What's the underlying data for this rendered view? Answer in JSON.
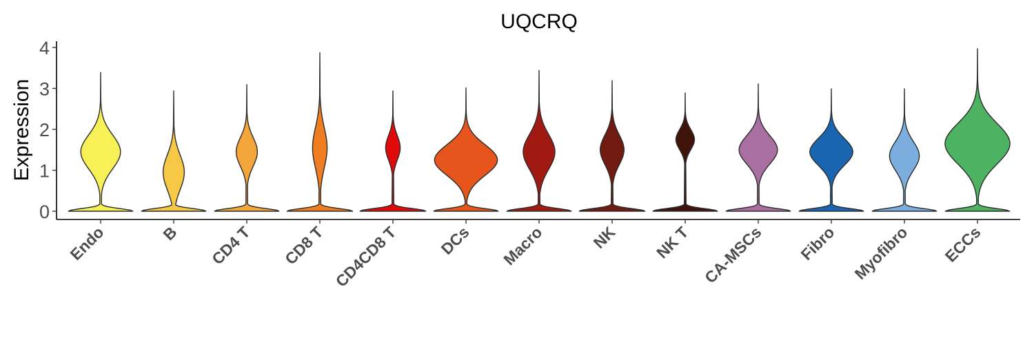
{
  "chart_data": {
    "type": "violin",
    "title": "UQCRQ",
    "xlabel": "",
    "ylabel": "Expression",
    "ylim": [
      0,
      4
    ],
    "yticks": [
      0,
      1,
      2,
      3,
      4
    ],
    "grid": false,
    "categories": [
      "Endo",
      "B",
      "CD4 T",
      "CD8 T",
      "CD4CD8 T",
      "DCs",
      "Macro",
      "NK",
      "NK T",
      "CA-MSCs",
      "Fibro",
      "Myofibro",
      "ECCs"
    ],
    "colors": [
      "#F7F056",
      "#F7C746",
      "#F5A63A",
      "#EF7D22",
      "#E00A0A",
      "#E6561C",
      "#A11A12",
      "#711A10",
      "#3F150B",
      "#A96FA0",
      "#1A65AF",
      "#7BAEDE",
      "#4DB261"
    ],
    "violins": [
      {
        "max": 3.4,
        "peak": 1.45,
        "peak_width": 0.6,
        "base_width": 0.98
      },
      {
        "max": 2.95,
        "peak": 0.95,
        "peak_width": 0.32,
        "base_width": 0.98
      },
      {
        "max": 3.1,
        "peak": 1.45,
        "peak_width": 0.32,
        "base_width": 0.98
      },
      {
        "max": 3.88,
        "peak": 1.55,
        "peak_width": 0.22,
        "base_width": 1.0
      },
      {
        "max": 2.95,
        "peak": 1.55,
        "peak_width": 0.22,
        "base_width": 1.0
      },
      {
        "max": 3.02,
        "peak": 1.25,
        "peak_width": 0.95,
        "base_width": 0.98
      },
      {
        "max": 3.45,
        "peak": 1.45,
        "peak_width": 0.48,
        "base_width": 0.98
      },
      {
        "max": 3.2,
        "peak": 1.5,
        "peak_width": 0.36,
        "base_width": 1.0
      },
      {
        "max": 2.9,
        "peak": 1.75,
        "peak_width": 0.28,
        "base_width": 0.98
      },
      {
        "max": 3.12,
        "peak": 1.5,
        "peak_width": 0.58,
        "base_width": 0.98
      },
      {
        "max": 3.0,
        "peak": 1.45,
        "peak_width": 0.65,
        "base_width": 0.98
      },
      {
        "max": 3.0,
        "peak": 1.35,
        "peak_width": 0.45,
        "base_width": 0.98
      },
      {
        "max": 3.98,
        "peak": 1.65,
        "peak_width": 0.98,
        "base_width": 0.98
      }
    ]
  }
}
